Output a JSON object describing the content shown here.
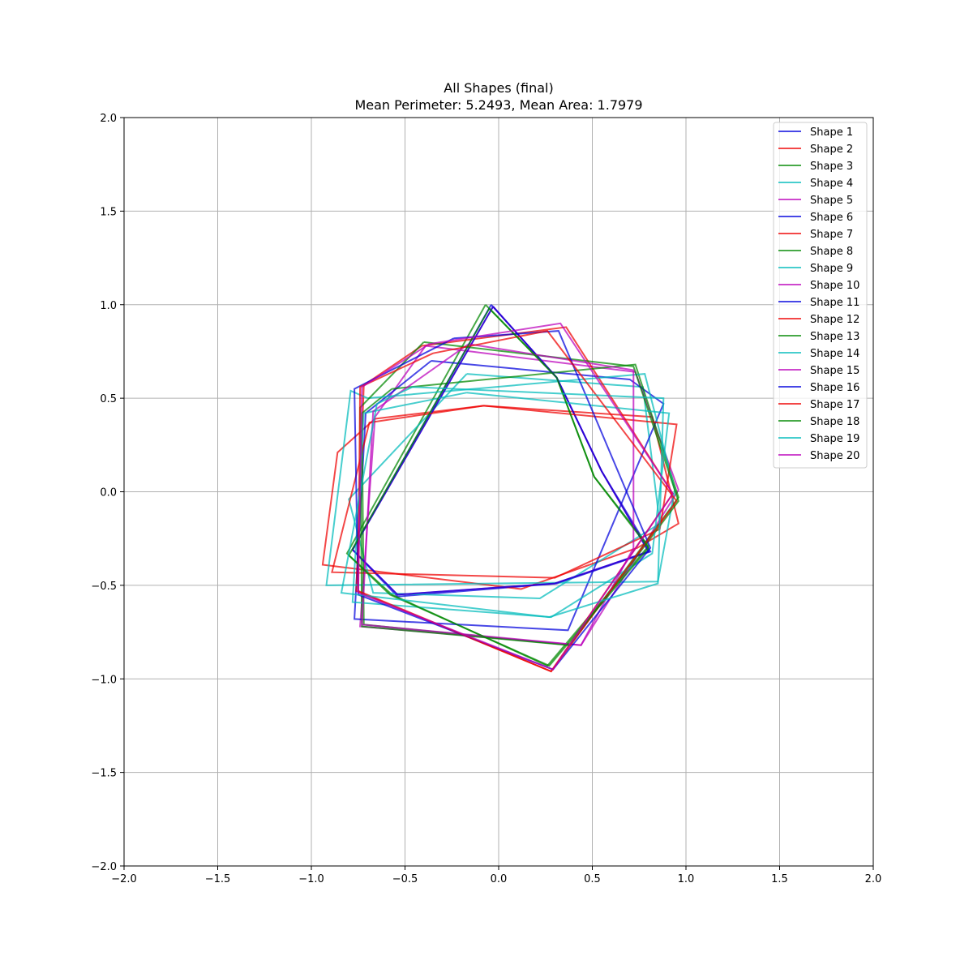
{
  "chart_data": {
    "type": "line",
    "title": "All Shapes (final)",
    "subtitle": "Mean Perimeter: 5.2493, Mean Area: 1.7979",
    "xlabel": "",
    "ylabel": "",
    "xlim": [
      -2.0,
      2.0
    ],
    "ylim": [
      -2.0,
      2.0
    ],
    "xticks": [
      "−2.0",
      "−1.5",
      "−1.0",
      "−0.5",
      "0.0",
      "0.5",
      "1.0",
      "1.5",
      "2.0"
    ],
    "yticks": [
      "−2.0",
      "−1.5",
      "−1.0",
      "−0.5",
      "0.0",
      "0.5",
      "1.0",
      "1.5",
      "2.0"
    ],
    "grid": true,
    "legend_position": "top-right",
    "series": [
      {
        "name": "Shape 1",
        "color": "#0000dd",
        "x": [
          -0.04,
          0.31,
          0.55,
          0.81,
          0.31,
          -0.54,
          -0.78,
          -0.04
        ],
        "y": [
          1.0,
          0.61,
          0.11,
          -0.32,
          -0.49,
          -0.56,
          -0.31,
          1.0
        ]
      },
      {
        "name": "Shape 2",
        "color": "#ee0000",
        "x": [
          -0.08,
          0.82,
          0.96,
          0.74,
          0.12,
          -0.94,
          -0.86,
          -0.66,
          -0.08
        ],
        "y": [
          0.46,
          0.4,
          -0.17,
          -0.3,
          -0.52,
          -0.39,
          0.21,
          0.39,
          0.46
        ]
      },
      {
        "name": "Shape 3",
        "color": "#008800",
        "x": [
          -0.07,
          0.31,
          0.51,
          0.8,
          0.26,
          -0.57,
          -0.81,
          -0.07
        ],
        "y": [
          1.0,
          0.61,
          0.08,
          -0.29,
          -0.93,
          -0.55,
          -0.33,
          1.0
        ]
      },
      {
        "name": "Shape 4",
        "color": "#00bbbb",
        "x": [
          -0.17,
          0.77,
          0.86,
          0.22,
          -0.67,
          -0.8,
          -0.17
        ],
        "y": [
          0.63,
          0.56,
          -0.17,
          -0.57,
          -0.54,
          -0.04,
          0.63
        ]
      },
      {
        "name": "Shape 5",
        "color": "#bb00bb",
        "x": [
          -0.39,
          0.73,
          0.96,
          0.44,
          -0.74,
          -0.66,
          -0.39
        ],
        "y": [
          0.78,
          0.64,
          0.01,
          -0.82,
          -0.72,
          0.4,
          0.78
        ]
      },
      {
        "name": "Shape 6",
        "color": "#0000dd",
        "x": [
          -0.36,
          0.7,
          0.88,
          0.37,
          -0.77,
          -0.71,
          -0.36
        ],
        "y": [
          0.7,
          0.6,
          0.47,
          -0.74,
          -0.68,
          0.42,
          0.7
        ]
      },
      {
        "name": "Shape 7",
        "color": "#ee0000",
        "x": [
          -0.41,
          0.36,
          0.93,
          0.28,
          -0.76,
          -0.72,
          -0.41
        ],
        "y": [
          0.78,
          0.88,
          -0.01,
          -0.96,
          -0.53,
          0.57,
          0.78
        ]
      },
      {
        "name": "Shape 8",
        "color": "#008800",
        "x": [
          -0.57,
          0.73,
          0.96,
          0.38,
          -0.72,
          -0.73,
          -0.57
        ],
        "y": [
          0.55,
          0.68,
          -0.03,
          -0.82,
          -0.71,
          0.42,
          0.55
        ]
      },
      {
        "name": "Shape 9",
        "color": "#00bbbb",
        "x": [
          -0.7,
          0.78,
          0.94,
          0.85,
          -0.92,
          -0.79,
          -0.7
        ],
        "y": [
          0.5,
          0.63,
          0.01,
          -0.48,
          -0.5,
          0.54,
          0.5
        ]
      },
      {
        "name": "Shape 10",
        "color": "#bb00bb",
        "x": [
          -0.03,
          0.31,
          0.55,
          0.8,
          0.3,
          -0.54,
          -0.78,
          -0.03
        ],
        "y": [
          0.99,
          0.61,
          0.11,
          -0.32,
          -0.49,
          -0.55,
          -0.31,
          0.99
        ]
      },
      {
        "name": "Shape 11",
        "color": "#0000dd",
        "x": [
          -0.03,
          0.31,
          0.55,
          0.8,
          0.3,
          -0.54,
          -0.78,
          -0.03
        ],
        "y": [
          0.99,
          0.61,
          0.11,
          -0.32,
          -0.49,
          -0.55,
          -0.31,
          0.99
        ]
      },
      {
        "name": "Shape 12",
        "color": "#ee0000",
        "x": [
          -0.08,
          0.95,
          0.86,
          0.3,
          -0.89,
          -0.69,
          -0.08
        ],
        "y": [
          0.46,
          0.36,
          -0.2,
          -0.46,
          -0.43,
          0.37,
          0.46
        ]
      },
      {
        "name": "Shape 13",
        "color": "#008800",
        "x": [
          -0.4,
          0.72,
          0.96,
          0.38,
          -0.73,
          -0.74,
          -0.4
        ],
        "y": [
          0.8,
          0.67,
          -0.05,
          -0.82,
          -0.72,
          0.45,
          0.8
        ]
      },
      {
        "name": "Shape 14",
        "color": "#00bbbb",
        "x": [
          -0.17,
          0.91,
          0.82,
          0.28,
          -0.78,
          -0.72,
          -0.17
        ],
        "y": [
          0.53,
          0.42,
          -0.33,
          -0.67,
          -0.59,
          0.42,
          0.53
        ]
      },
      {
        "name": "Shape 15",
        "color": "#bb00bb",
        "x": [
          -0.16,
          0.72,
          0.72,
          0.44,
          -0.73,
          -0.67,
          -0.16
        ],
        "y": [
          0.79,
          0.65,
          -0.3,
          -0.82,
          -0.71,
          0.43,
          0.79
        ]
      },
      {
        "name": "Shape 16",
        "color": "#0000dd",
        "x": [
          -0.24,
          0.32,
          0.81,
          0.29,
          -0.75,
          -0.77,
          -0.24
        ],
        "y": [
          0.82,
          0.86,
          -0.3,
          -0.95,
          -0.55,
          0.55,
          0.82
        ]
      },
      {
        "name": "Shape 17",
        "color": "#ee0000",
        "x": [
          -0.35,
          0.26,
          0.95,
          0.28,
          -0.75,
          -0.74,
          -0.35
        ],
        "y": [
          0.74,
          0.86,
          -0.05,
          -0.96,
          -0.53,
          0.56,
          0.74
        ]
      },
      {
        "name": "Shape 18",
        "color": "#008800",
        "x": [
          -0.05,
          0.31,
          0.51,
          0.8,
          0.27,
          -0.58,
          -0.8,
          -0.05
        ],
        "y": [
          0.98,
          0.61,
          0.08,
          -0.3,
          -0.93,
          -0.55,
          -0.34,
          0.98
        ]
      },
      {
        "name": "Shape 19",
        "color": "#00bbbb",
        "x": [
          -0.46,
          0.88,
          0.85,
          0.27,
          -0.84,
          -0.65,
          -0.46
        ],
        "y": [
          0.56,
          0.5,
          -0.49,
          -0.67,
          -0.54,
          0.47,
          0.56
        ]
      },
      {
        "name": "Shape 20",
        "color": "#bb00bb",
        "x": [
          -0.37,
          0.33,
          0.93,
          0.29,
          -0.75,
          -0.73,
          -0.37
        ],
        "y": [
          0.79,
          0.9,
          -0.01,
          -0.95,
          -0.54,
          0.56,
          0.79
        ]
      }
    ]
  }
}
